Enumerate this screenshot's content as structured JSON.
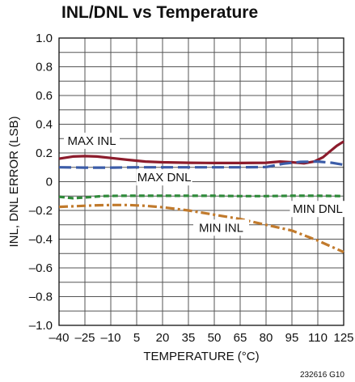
{
  "chart_data": {
    "type": "line",
    "title": "INL/DNL vs Temperature",
    "xlabel": "TEMPERATURE (°C)",
    "ylabel": "INL, DNL ERROR (LSB)",
    "xlim": [
      -40,
      125
    ],
    "ylim": [
      -1.0,
      1.0
    ],
    "grid": true,
    "x_ticks": [
      -40,
      -25,
      -10,
      5,
      20,
      35,
      50,
      65,
      80,
      95,
      110,
      125
    ],
    "x_tick_labels": [
      "–40",
      "–25",
      "–10",
      "5",
      "20",
      "35",
      "50",
      "65",
      "80",
      "95",
      "110",
      "125"
    ],
    "y_ticks": [
      1.0,
      0.8,
      0.6,
      0.4,
      0.2,
      0,
      -0.2,
      -0.4,
      -0.6,
      -0.8,
      -1.0
    ],
    "y_tick_labels": [
      "1.0",
      "0.8",
      "0.6",
      "0.4",
      "0.2",
      "0",
      "–0.2",
      "–0.4",
      "–0.6",
      "–0.8",
      "–1.0"
    ],
    "series": [
      {
        "name": "MAX INL",
        "color": "#8c1c2c",
        "style": "solid",
        "x": [
          -40,
          -32,
          -25,
          -18,
          -10,
          0,
          10,
          20,
          35,
          50,
          65,
          80,
          88,
          95,
          102,
          108,
          113,
          117,
          121,
          125
        ],
        "y": [
          0.16,
          0.175,
          0.178,
          0.175,
          0.165,
          0.152,
          0.14,
          0.135,
          0.132,
          0.13,
          0.13,
          0.132,
          0.14,
          0.135,
          0.128,
          0.14,
          0.17,
          0.21,
          0.25,
          0.28
        ]
      },
      {
        "name": "MAX DNL",
        "color": "#3b5ca8",
        "style": "longdash",
        "x": [
          -40,
          -25,
          -10,
          5,
          20,
          35,
          50,
          65,
          80,
          90,
          100,
          110,
          118,
          125
        ],
        "y": [
          0.1,
          0.098,
          0.098,
          0.1,
          0.1,
          0.1,
          0.1,
          0.1,
          0.102,
          0.125,
          0.138,
          0.14,
          0.132,
          0.118
        ]
      },
      {
        "name": "MIN DNL",
        "color": "#2f8a3a",
        "style": "shortdash",
        "x": [
          -40,
          -32,
          -25,
          -15,
          -5,
          5,
          20,
          35,
          50,
          65,
          80,
          95,
          110,
          125
        ],
        "y": [
          -0.105,
          -0.115,
          -0.11,
          -0.1,
          -0.098,
          -0.098,
          -0.098,
          -0.098,
          -0.098,
          -0.1,
          -0.1,
          -0.098,
          -0.098,
          -0.1
        ]
      },
      {
        "name": "MIN INL",
        "color": "#c17a2c",
        "style": "dashdot",
        "x": [
          -40,
          -30,
          -20,
          -10,
          0,
          10,
          20,
          35,
          50,
          65,
          80,
          95,
          110,
          125
        ],
        "y": [
          -0.175,
          -0.17,
          -0.165,
          -0.162,
          -0.162,
          -0.168,
          -0.178,
          -0.2,
          -0.23,
          -0.26,
          -0.3,
          -0.34,
          -0.41,
          -0.49
        ]
      }
    ],
    "annotations": [
      {
        "text": "MAX INL",
        "x": -21,
        "y": 0.285
      },
      {
        "text": "MAX DNL",
        "x": 21,
        "y": 0.03
      },
      {
        "text": "MIN DNL",
        "x": 110,
        "y": -0.19
      },
      {
        "text": "MIN INL",
        "x": 54,
        "y": -0.32
      }
    ],
    "figure_code": "232616 G10"
  }
}
